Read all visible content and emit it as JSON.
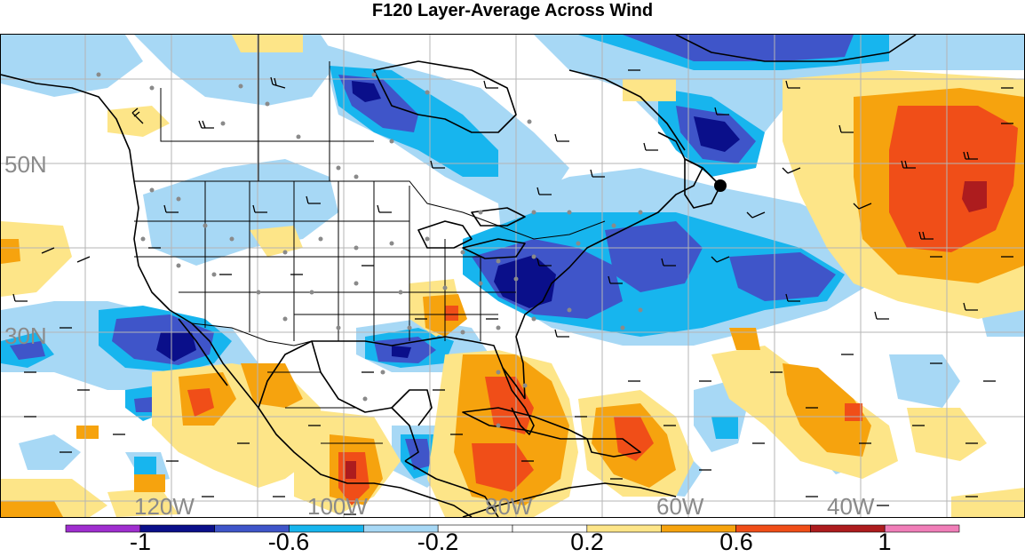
{
  "title": "F120 Layer-Average Across Wind",
  "map": {
    "lat_labels": [
      "50N",
      "30N"
    ],
    "lon_labels": [
      "120W",
      "100W",
      "80W",
      "60W",
      "40W"
    ]
  },
  "colorbar": {
    "colors": [
      "#9f2ecf",
      "#0a0f8a",
      "#3f55c9",
      "#17b5ee",
      "#a7d8f5",
      "#ffffff",
      "#ffffff",
      "#fde588",
      "#f6a30e",
      "#f04e18",
      "#ad1c1e",
      "#f07eb8"
    ],
    "labels": [
      "-1",
      "-0.6",
      "-0.2",
      "0.2",
      "0.6",
      "1"
    ]
  },
  "colors": {
    "deep_blue": "#0a0f8a",
    "blue": "#3f55c9",
    "cyan": "#17b5ee",
    "light_blue": "#a7d8f5",
    "light_yellow": "#fde588",
    "orange": "#f6a30e",
    "red_orange": "#f04e18",
    "dark_red": "#ad1c1e",
    "grid": "#b5b5b5",
    "label_gray": "#8a8a8a"
  }
}
